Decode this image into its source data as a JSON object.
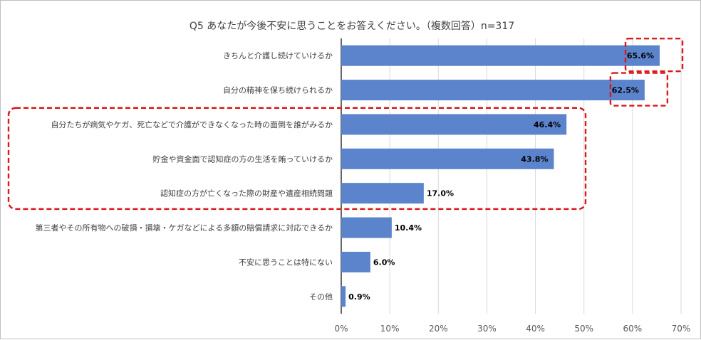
{
  "chart_data": {
    "type": "bar",
    "orientation": "horizontal",
    "title": "Q5 あなたが今後不安に思うことをお答えください。（複数回答）n=317",
    "categories": [
      "きちんと介護し続けていけるか",
      "自分の精神を保ち続けられるか",
      "自分たちが病気やケガ、死亡などで介護ができなくなった時の面倒を誰がみるか",
      "貯金や資金面で認知症の方の生活を賄っていけるか",
      "認知症の方が亡くなった際の財産や遺産相続問題",
      "第三者やその所有物への破損・損壊・ケガなどによる多額の賠償請求に対応できるか",
      "不安に思うことは特にない",
      "その他"
    ],
    "values": [
      65.6,
      62.5,
      46.4,
      43.8,
      17.0,
      10.4,
      6.0,
      0.9
    ],
    "data_labels": [
      "65.6%",
      "62.5%",
      "46.4%",
      "43.8%",
      "17.0%",
      "10.4%",
      "6.0%",
      "0.9%"
    ],
    "label_inside": [
      true,
      true,
      true,
      true,
      false,
      false,
      false,
      false
    ],
    "xlim": [
      0,
      70
    ],
    "xticks": [
      "0%",
      "10%",
      "20%",
      "30%",
      "40%",
      "50%",
      "60%",
      "70%"
    ],
    "grid": true,
    "bar_color": "#5b84cc",
    "highlight_color": "#d9191a",
    "highlight_style": "dashed",
    "highlights": [
      {
        "type": "label",
        "category_index": 0
      },
      {
        "type": "label",
        "category_index": 1
      },
      {
        "type": "group",
        "category_indices": [
          2,
          3,
          4
        ]
      }
    ]
  }
}
